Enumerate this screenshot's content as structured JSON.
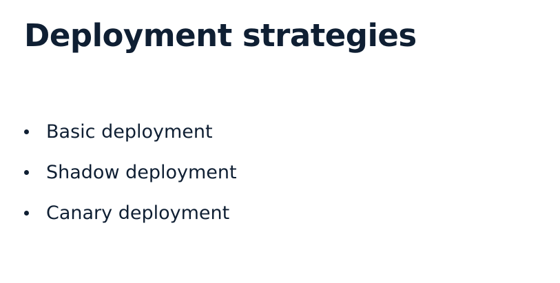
{
  "slide": {
    "title": "Deployment strategies",
    "bullets": [
      {
        "label": "Basic deployment"
      },
      {
        "label": "Shadow deployment"
      },
      {
        "label": "Canary deployment"
      }
    ]
  },
  "colors": {
    "text": "#0f1f33",
    "background": "#ffffff"
  }
}
